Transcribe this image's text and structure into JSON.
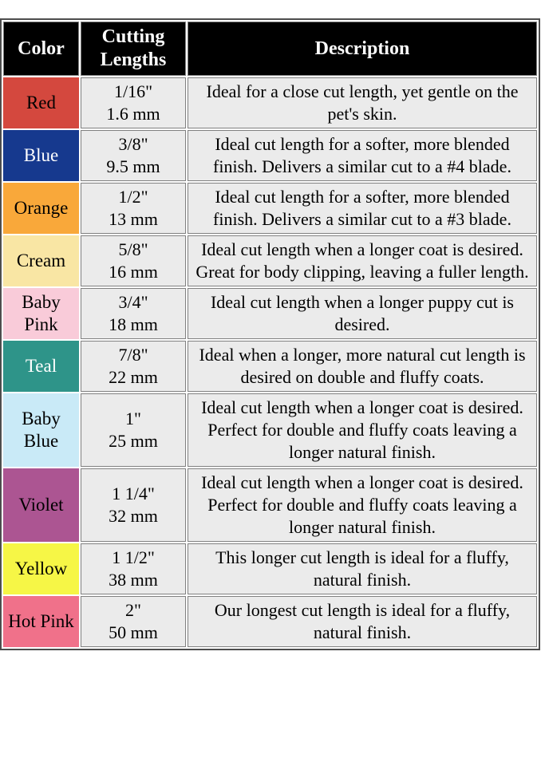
{
  "page": {
    "background": "#ffffff"
  },
  "table": {
    "outer_border_color": "#4d4d4d",
    "cell_border_color": "#808080",
    "cell_bg": "#ebebeb",
    "header": {
      "bg": "#000000",
      "text_color": "#ffffff",
      "columns": [
        "Color",
        "Cutting Lengths",
        "Description"
      ]
    },
    "rows": [
      {
        "color_name": "Red",
        "swatch": "#d4483e",
        "text_color": "#000000",
        "length_in": "1/16\"",
        "length_mm": "1.6 mm",
        "description": "Ideal for a close cut length, yet gentle on the pet's skin."
      },
      {
        "color_name": "Blue",
        "swatch": "#16398e",
        "text_color": "#ffffff",
        "length_in": "3/8\"",
        "length_mm": "9.5 mm",
        "description": "Ideal cut length for a softer, more blended finish. Delivers a similar cut to a #4 blade."
      },
      {
        "color_name": "Orange",
        "swatch": "#f9a83a",
        "text_color": "#000000",
        "length_in": "1/2\"",
        "length_mm": "13 mm",
        "description": "Ideal cut length for a softer, more blended finish. Delivers a similar cut to a #3 blade."
      },
      {
        "color_name": "Cream",
        "swatch": "#f9e6a4",
        "text_color": "#000000",
        "length_in": "5/8\"",
        "length_mm": "16 mm",
        "description": "Ideal cut length when a longer coat is desired. Great for body clipping, leaving a fuller length."
      },
      {
        "color_name": "Baby Pink",
        "swatch": "#f9cbd9",
        "text_color": "#000000",
        "length_in": "3/4\"",
        "length_mm": "18 mm",
        "description": "Ideal cut length when a longer puppy cut is desired."
      },
      {
        "color_name": "Teal",
        "swatch": "#2e9489",
        "text_color": "#ffffff",
        "length_in": "7/8\"",
        "length_mm": "22 mm",
        "description": "Ideal when a longer, more natural cut length is desired on double and fluffy coats."
      },
      {
        "color_name": "Baby Blue",
        "swatch": "#c9eaf7",
        "text_color": "#000000",
        "length_in": "1\"",
        "length_mm": "25 mm",
        "description": "Ideal cut length when a longer coat is desired. Perfect for double and fluffy coats leaving a longer natural finish."
      },
      {
        "color_name": "Violet",
        "swatch": "#ac5592",
        "text_color": "#000000",
        "length_in": "1 1/4\"",
        "length_mm": "32 mm",
        "description": "Ideal cut length when a longer coat is desired. Perfect for double and fluffy coats leaving a longer natural finish."
      },
      {
        "color_name": "Yellow",
        "swatch": "#f6f646",
        "text_color": "#000000",
        "length_in": "1 1/2\"",
        "length_mm": "38 mm",
        "description": "This longer cut length is ideal for a fluffy, natural finish."
      },
      {
        "color_name": "Hot Pink",
        "swatch": "#f0718a",
        "text_color": "#000000",
        "length_in": "2\"",
        "length_mm": "50 mm",
        "description": "Our longest cut length is ideal for a fluffy, natural finish."
      }
    ]
  },
  "chart_data": {
    "type": "table",
    "columns": [
      "Color",
      "Cutting Lengths",
      "Description"
    ],
    "rows": [
      [
        "Red",
        "1/16\" 1.6 mm",
        "Ideal for a close cut length, yet gentle on the pet's skin."
      ],
      [
        "Blue",
        "3/8\" 9.5 mm",
        "Ideal cut length for a softer, more blended finish. Delivers a similar cut to a #4 blade."
      ],
      [
        "Orange",
        "1/2\" 13 mm",
        "Ideal cut length for a softer, more blended finish. Delivers a similar cut to a #3 blade."
      ],
      [
        "Cream",
        "5/8\" 16 mm",
        "Ideal cut length when a longer coat is desired. Great for body clipping, leaving a fuller length."
      ],
      [
        "Baby Pink",
        "3/4\" 18 mm",
        "Ideal cut length when a longer puppy cut is desired."
      ],
      [
        "Teal",
        "7/8\" 22 mm",
        "Ideal when a longer, more natural cut length is desired on double and fluffy coats."
      ],
      [
        "Baby Blue",
        "1\" 25 mm",
        "Ideal cut length when a longer coat is desired. Perfect for double and fluffy coats leaving a longer natural finish."
      ],
      [
        "Violet",
        "1 1/4\" 32 mm",
        "Ideal cut length when a longer coat is desired. Perfect for double and fluffy coats leaving a longer natural finish."
      ],
      [
        "Yellow",
        "1 1/2\" 38 mm",
        "This longer cut length is ideal for a fluffy, natural finish."
      ],
      [
        "Hot Pink",
        "2\" 50 mm",
        "Our longest cut length is ideal for a fluffy, natural finish."
      ]
    ],
    "swatch_colors": [
      "#d4483e",
      "#16398e",
      "#f9a83a",
      "#f9e6a4",
      "#f9cbd9",
      "#2e9489",
      "#c9eaf7",
      "#ac5592",
      "#f6f646",
      "#f0718a"
    ]
  }
}
